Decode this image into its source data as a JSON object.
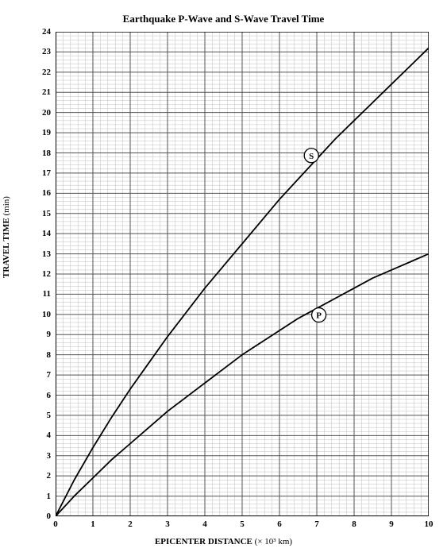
{
  "chart": {
    "type": "line",
    "title": "Earthquake P-Wave and S-Wave Travel Time",
    "title_fontsize": 13,
    "xlabel_prefix": "EPICENTER DISTANCE",
    "xlabel_units": "(× 10³ km)",
    "ylabel_prefix": "TRAVEL TIME",
    "ylabel_units": "(min)",
    "label_fontsize": 11,
    "xlim": [
      0,
      10
    ],
    "ylim": [
      0,
      24
    ],
    "xtick_step": 1,
    "ytick_step": 1,
    "minor_x_divisions": 5,
    "minor_y_divisions": 5,
    "background_color": "#ffffff",
    "major_grid_color": "#555555",
    "minor_grid_color": "#bfbfbf",
    "axis_color": "#000000",
    "line_color": "#000000",
    "line_width": 1.8,
    "series": {
      "S": {
        "label": "S",
        "marker_x": 6.6,
        "marker_y": 17.4,
        "points": [
          {
            "x": 0.0,
            "y": 0.0
          },
          {
            "x": 0.5,
            "y": 1.8
          },
          {
            "x": 1.0,
            "y": 3.4
          },
          {
            "x": 1.5,
            "y": 4.9
          },
          {
            "x": 2.0,
            "y": 6.3
          },
          {
            "x": 2.5,
            "y": 7.6
          },
          {
            "x": 3.0,
            "y": 8.9
          },
          {
            "x": 3.5,
            "y": 10.1
          },
          {
            "x": 4.0,
            "y": 11.3
          },
          {
            "x": 4.5,
            "y": 12.4
          },
          {
            "x": 5.0,
            "y": 13.5
          },
          {
            "x": 5.5,
            "y": 14.6
          },
          {
            "x": 6.0,
            "y": 15.7
          },
          {
            "x": 6.5,
            "y": 16.7
          },
          {
            "x": 7.0,
            "y": 17.7
          },
          {
            "x": 7.5,
            "y": 18.7
          },
          {
            "x": 8.0,
            "y": 19.6
          },
          {
            "x": 8.5,
            "y": 20.5
          },
          {
            "x": 9.0,
            "y": 21.4
          },
          {
            "x": 9.5,
            "y": 22.3
          },
          {
            "x": 10.0,
            "y": 23.2
          }
        ]
      },
      "P": {
        "label": "P",
        "marker_x": 6.8,
        "marker_y": 9.5,
        "points": [
          {
            "x": 0.0,
            "y": 0.0
          },
          {
            "x": 0.5,
            "y": 1.0
          },
          {
            "x": 1.0,
            "y": 1.9
          },
          {
            "x": 1.5,
            "y": 2.8
          },
          {
            "x": 2.0,
            "y": 3.6
          },
          {
            "x": 2.5,
            "y": 4.4
          },
          {
            "x": 3.0,
            "y": 5.2
          },
          {
            "x": 3.5,
            "y": 5.9
          },
          {
            "x": 4.0,
            "y": 6.6
          },
          {
            "x": 4.5,
            "y": 7.3
          },
          {
            "x": 5.0,
            "y": 8.0
          },
          {
            "x": 5.5,
            "y": 8.6
          },
          {
            "x": 6.0,
            "y": 9.2
          },
          {
            "x": 6.5,
            "y": 9.8
          },
          {
            "x": 7.0,
            "y": 10.3
          },
          {
            "x": 7.5,
            "y": 10.8
          },
          {
            "x": 8.0,
            "y": 11.3
          },
          {
            "x": 8.5,
            "y": 11.8
          },
          {
            "x": 9.0,
            "y": 12.2
          },
          {
            "x": 9.5,
            "y": 12.6
          },
          {
            "x": 10.0,
            "y": 13.0
          }
        ]
      }
    }
  }
}
